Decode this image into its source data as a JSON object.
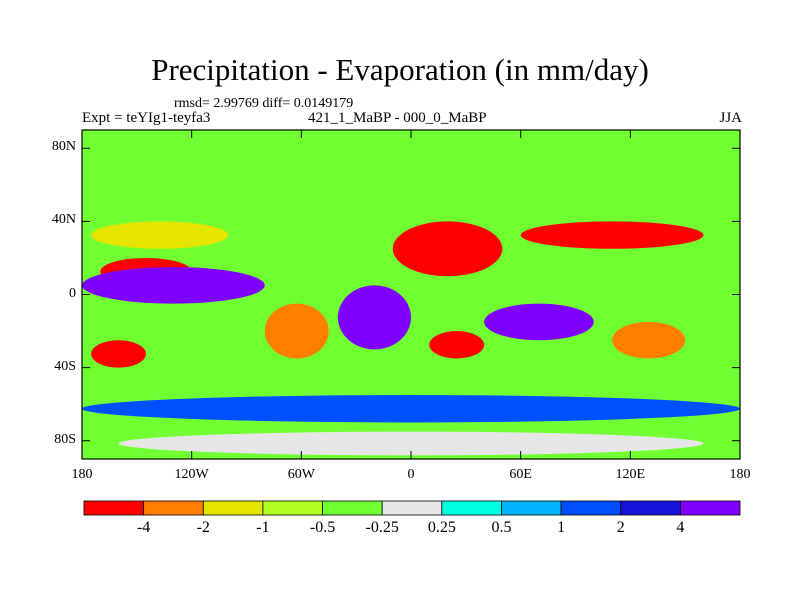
{
  "chart_data": {
    "type": "heatmap",
    "title": "Precipitation - Evaporation (in mm/day)",
    "subtitle": "rmsd= 2.99769  diff= 0.0149179",
    "left_label": "Expt = teYIg1-teyfa3",
    "center_label": "421_1_MaBP - 000_0_MaBP",
    "right_label": "JJA",
    "x_ticks": [
      {
        "lon": -180,
        "label": "180"
      },
      {
        "lon": -120,
        "label": "120W"
      },
      {
        "lon": -60,
        "label": "60W"
      },
      {
        "lon": 0,
        "label": "0"
      },
      {
        "lon": 60,
        "label": "60E"
      },
      {
        "lon": 120,
        "label": "120E"
      },
      {
        "lon": 180,
        "label": "180"
      }
    ],
    "y_ticks": [
      {
        "lat": 80,
        "label": "80N"
      },
      {
        "lat": 40,
        "label": "40N"
      },
      {
        "lat": 0,
        "label": "0"
      },
      {
        "lat": -40,
        "label": "40S"
      },
      {
        "lat": -80,
        "label": "80S"
      }
    ],
    "xlim": [
      -180,
      180
    ],
    "ylim": [
      -90,
      90
    ],
    "colorbar": {
      "colors": [
        "#ff0000",
        "#ff7f00",
        "#e5e500",
        "#b0ff20",
        "#70ff30",
        "#e6e6e6",
        "#00ffe0",
        "#00b4ff",
        "#0050ff",
        "#1414dc",
        "#8000ff"
      ],
      "levels": [
        {
          "value": "-4",
          "boundary": 1
        },
        {
          "value": "-2",
          "boundary": 2
        },
        {
          "value": "-1",
          "boundary": 3
        },
        {
          "value": "-0.5",
          "boundary": 4
        },
        {
          "value": "-0.25",
          "boundary": 5
        },
        {
          "value": "0.25",
          "boundary": 6
        },
        {
          "value": "0.5",
          "boundary": 7
        },
        {
          "value": "1",
          "boundary": 8
        },
        {
          "value": "2",
          "boundary": 9
        },
        {
          "value": "4",
          "boundary": 10
        }
      ]
    },
    "regions": [
      {
        "name": "north-pacific-dry-band",
        "level": 2,
        "lon": [
          -175,
          -100
        ],
        "lat": [
          25,
          40
        ]
      },
      {
        "name": "east-pacific-dry",
        "level": 0,
        "lon": [
          -170,
          -120
        ],
        "lat": [
          5,
          20
        ]
      },
      {
        "name": "tropical-pacific-wet-band",
        "level": 10,
        "lon": [
          -180,
          -80
        ],
        "lat": [
          -5,
          15
        ]
      },
      {
        "name": "south-pacific-dry",
        "level": 0,
        "lon": [
          -175,
          -145
        ],
        "lat": [
          -40,
          -25
        ]
      },
      {
        "name": "south-america-dry",
        "level": 1,
        "lon": [
          -80,
          -45
        ],
        "lat": [
          -35,
          -5
        ]
      },
      {
        "name": "atlantic-wet",
        "level": 10,
        "lon": [
          -40,
          0
        ],
        "lat": [
          -30,
          5
        ]
      },
      {
        "name": "sahara-dry",
        "level": 0,
        "lon": [
          -10,
          50
        ],
        "lat": [
          10,
          40
        ]
      },
      {
        "name": "southern-africa-dry",
        "level": 0,
        "lon": [
          10,
          40
        ],
        "lat": [
          -35,
          -20
        ]
      },
      {
        "name": "indian-ocean-wet",
        "level": 10,
        "lon": [
          40,
          100
        ],
        "lat": [
          -25,
          -5
        ]
      },
      {
        "name": "asia-dry",
        "level": 0,
        "lon": [
          60,
          160
        ],
        "lat": [
          25,
          40
        ]
      },
      {
        "name": "australia-dry",
        "level": 1,
        "lon": [
          110,
          150
        ],
        "lat": [
          -35,
          -15
        ]
      },
      {
        "name": "southern-ocean-wet",
        "level": 8,
        "lon": [
          -180,
          180
        ],
        "lat": [
          -70,
          -55
        ]
      },
      {
        "name": "antarctic-neutral",
        "level": 5,
        "lon": [
          -160,
          160
        ],
        "lat": [
          -88,
          -75
        ]
      }
    ]
  }
}
